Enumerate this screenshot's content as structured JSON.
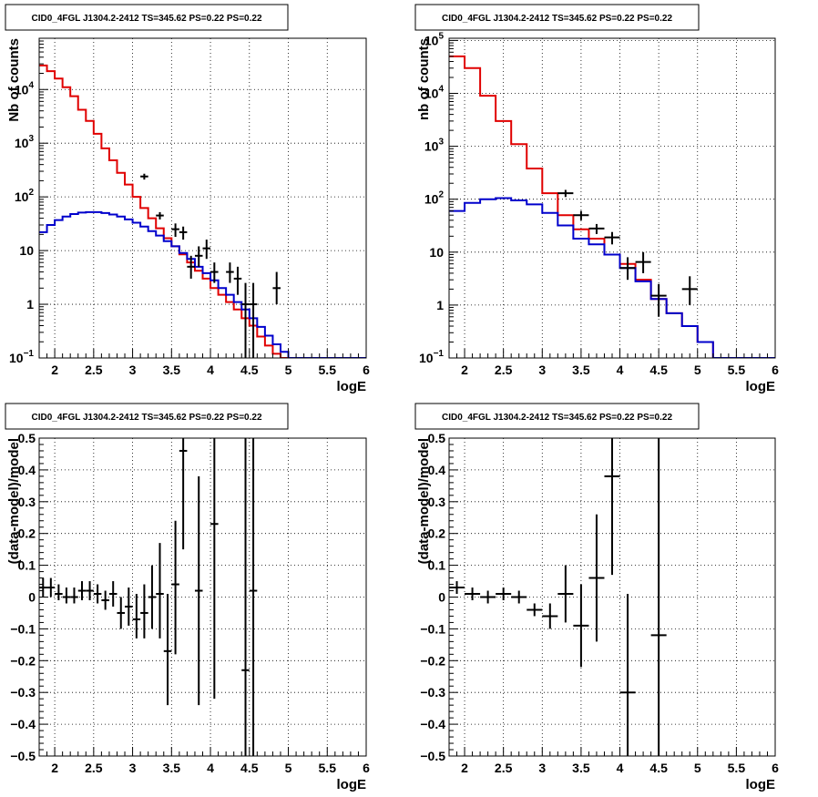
{
  "chart_data": [
    {
      "type": "histogram",
      "title": "CID0_4FGL J1304.2-2412 TS=345.62 PS=0.22 PS=0.22",
      "xlabel": "logE",
      "ylabel": "Nb of counts",
      "xlim": [
        1.8,
        6.0
      ],
      "ylim": [
        0.1,
        90000
      ],
      "y_scale": "log",
      "grid": true,
      "x_ticks": [
        2,
        2.5,
        3,
        3.5,
        4,
        4.5,
        5,
        5.5,
        6
      ],
      "x_tick_labels": [
        "2",
        "2.5",
        "3",
        "3.5",
        "4",
        "4.5",
        "5",
        "5.5",
        "6"
      ],
      "y_ticks": [
        0.1,
        1,
        10,
        100,
        1000,
        10000
      ],
      "y_tick_labels": [
        {
          "base": "10",
          "exp": "−1"
        },
        {
          "base": "1",
          "exp": ""
        },
        {
          "base": "10",
          "exp": ""
        },
        {
          "base": "10",
          "exp": "2"
        },
        {
          "base": "10",
          "exp": "3"
        },
        {
          "base": "10",
          "exp": "4"
        }
      ],
      "bin_edges": [
        1.8,
        1.9,
        2.0,
        2.1,
        2.2,
        2.3,
        2.4,
        2.5,
        2.6,
        2.7,
        2.8,
        2.9,
        3.0,
        3.1,
        3.2,
        3.3,
        3.4,
        3.5,
        3.6,
        3.7,
        3.8,
        3.9,
        4.0,
        4.1,
        4.2,
        4.3,
        4.4,
        4.5,
        4.6,
        4.7,
        4.8,
        4.9,
        5.0,
        5.1,
        5.2,
        5.3,
        5.4,
        5.5,
        5.6,
        5.7,
        5.8,
        5.9,
        6.0
      ],
      "series": [
        {
          "role": "total-model",
          "color": "#e00000",
          "values": [
            28000,
            22000,
            16000,
            11000,
            7500,
            4200,
            2600,
            1500,
            800,
            480,
            280,
            170,
            100,
            62,
            40,
            26,
            17,
            12,
            8.5,
            6,
            4.2,
            3,
            2,
            1.5,
            1.1,
            0.8,
            0.55,
            0.4,
            0.25,
            0.17,
            0.12,
            0.1,
            0.1,
            0.1,
            0.1,
            0.1,
            0.1,
            0.1,
            0.1,
            0.1,
            0.1,
            0.1
          ]
        },
        {
          "role": "background-model",
          "color": "#0000cc",
          "values": [
            22,
            30,
            37,
            43,
            48,
            51,
            52,
            52,
            50,
            47,
            43,
            38,
            33,
            28,
            23,
            19,
            15,
            12,
            9,
            7,
            5,
            3.8,
            2.8,
            2,
            1.5,
            1.1,
            0.8,
            0.55,
            0.38,
            0.26,
            0.18,
            0.13,
            0.1,
            0.1,
            0.1,
            0.1,
            0.1,
            0.1,
            0.1,
            0.1,
            0.1,
            0.1
          ]
        },
        {
          "role": "data",
          "color": "#000000",
          "x": [
            3.15,
            3.35,
            3.55,
            3.65,
            3.75,
            3.85,
            3.95,
            4.05,
            4.25,
            4.35,
            4.45,
            4.55,
            4.85
          ],
          "xerr": [
            0.05,
            0.05,
            0.05,
            0.05,
            0.05,
            0.05,
            0.05,
            0.05,
            0.05,
            0.05,
            0.05,
            0.05,
            0.05
          ],
          "y": [
            240,
            45,
            25,
            22,
            5,
            8,
            11,
            4,
            4,
            3,
            1,
            1,
            2
          ],
          "ylo": [
            210,
            38,
            18,
            16,
            3,
            5,
            7,
            2.5,
            2.5,
            1.5,
            0.1,
            0.1,
            1
          ],
          "yhi": [
            270,
            52,
            32,
            28,
            8,
            12,
            16,
            6,
            6,
            5,
            2.5,
            2.5,
            4
          ]
        }
      ]
    },
    {
      "type": "histogram",
      "title": "CID0_4FGL J1304.2-2412 TS=345.62 PS=0.22 PS=0.22",
      "xlabel": "logE",
      "ylabel": "nb of counts",
      "xlim": [
        1.8,
        6.0
      ],
      "ylim": [
        0.1,
        110000
      ],
      "y_scale": "log",
      "grid": true,
      "x_ticks": [
        2,
        2.5,
        3,
        3.5,
        4,
        4.5,
        5,
        5.5,
        6
      ],
      "x_tick_labels": [
        "2",
        "2.5",
        "3",
        "3.5",
        "4",
        "4.5",
        "5",
        "5.5",
        "6"
      ],
      "y_ticks": [
        0.1,
        1,
        10,
        100,
        1000,
        10000,
        100000
      ],
      "y_tick_labels": [
        {
          "base": "10",
          "exp": "−1"
        },
        {
          "base": "1",
          "exp": ""
        },
        {
          "base": "10",
          "exp": ""
        },
        {
          "base": "10",
          "exp": "2"
        },
        {
          "base": "10",
          "exp": "3"
        },
        {
          "base": "10",
          "exp": "4"
        },
        {
          "base": "10",
          "exp": "5"
        }
      ],
      "bin_edges": [
        1.8,
        2.0,
        2.2,
        2.4,
        2.6,
        2.8,
        3.0,
        3.2,
        3.4,
        3.6,
        3.8,
        4.0,
        4.2,
        4.4,
        4.6,
        4.8,
        5.0,
        5.2,
        5.4,
        5.6,
        5.8,
        6.0
      ],
      "series": [
        {
          "role": "total-model",
          "color": "#e00000",
          "values": [
            50000,
            30000,
            9000,
            3000,
            1100,
            380,
            130,
            50,
            27,
            18,
            9,
            6,
            3,
            1.3,
            0.7,
            0.4,
            0.2,
            0.1,
            0.1,
            0.1,
            0.1
          ]
        },
        {
          "role": "background-model",
          "color": "#0000cc",
          "values": [
            60,
            85,
            100,
            105,
            95,
            80,
            55,
            32,
            18,
            14,
            9,
            5,
            2.8,
            1.3,
            0.7,
            0.4,
            0.2,
            0.1,
            0.1,
            0.1,
            0.1
          ]
        },
        {
          "role": "data",
          "color": "#000000",
          "x": [
            3.3,
            3.5,
            3.7,
            3.9,
            4.1,
            4.3,
            4.5,
            4.9
          ],
          "xerr": [
            0.1,
            0.1,
            0.1,
            0.1,
            0.1,
            0.1,
            0.1,
            0.1
          ],
          "y": [
            130,
            50,
            28,
            19,
            5,
            6.5,
            1.5,
            2
          ],
          "ylo": [
            110,
            40,
            22,
            14,
            3,
            4,
            0.6,
            1
          ],
          "yhi": [
            150,
            60,
            34,
            24,
            8,
            10,
            2.5,
            3.5
          ]
        }
      ]
    },
    {
      "type": "scatter",
      "title": "CID0_4FGL J1304.2-2412 TS=345.62 PS=0.22 PS=0.22",
      "xlabel": "logE",
      "ylabel": "(data-model)/model",
      "xlim": [
        1.8,
        6.0
      ],
      "ylim": [
        -0.5,
        0.5
      ],
      "grid": true,
      "x_ticks": [
        2,
        2.5,
        3,
        3.5,
        4,
        4.5,
        5,
        5.5,
        6
      ],
      "x_tick_labels": [
        "2",
        "2.5",
        "3",
        "3.5",
        "4",
        "4.5",
        "5",
        "5.5",
        "6"
      ],
      "y_ticks": [
        -0.5,
        -0.4,
        -0.3,
        -0.2,
        -0.1,
        0,
        0.1,
        0.2,
        0.3,
        0.4,
        0.5
      ],
      "y_tick_labels": [
        "−0.5",
        "−0.4",
        "−0.3",
        "−0.2",
        "−0.1",
        "0",
        "0.1",
        "0.2",
        "0.3",
        "0.4",
        "0.5"
      ],
      "series": [
        {
          "role": "residuals",
          "color": "#000000",
          "x": [
            1.85,
            1.95,
            2.05,
            2.15,
            2.25,
            2.35,
            2.45,
            2.55,
            2.65,
            2.75,
            2.85,
            2.95,
            3.05,
            3.15,
            3.25,
            3.35,
            3.45,
            3.55,
            3.65,
            3.85,
            4.05,
            4.45,
            4.55
          ],
          "xerr": [
            0.05,
            0.05,
            0.05,
            0.05,
            0.05,
            0.05,
            0.05,
            0.05,
            0.05,
            0.05,
            0.05,
            0.05,
            0.05,
            0.05,
            0.05,
            0.05,
            0.05,
            0.05,
            0.05,
            0.05,
            0.05,
            0.05,
            0.05
          ],
          "y": [
            0.03,
            0.03,
            0.01,
            0.0,
            0.0,
            0.02,
            0.02,
            0.01,
            -0.01,
            0.01,
            -0.05,
            -0.03,
            -0.07,
            -0.05,
            0.0,
            0.01,
            -0.17,
            0.04,
            0.46,
            0.02,
            0.23,
            -0.23,
            0.02
          ],
          "ylo": [
            0.0,
            0.0,
            -0.01,
            -0.02,
            -0.02,
            -0.01,
            -0.01,
            -0.02,
            -0.04,
            -0.03,
            -0.1,
            -0.09,
            -0.13,
            -0.13,
            -0.1,
            -0.13,
            -0.34,
            -0.18,
            0.15,
            -0.34,
            -0.32,
            -0.5,
            -0.5
          ],
          "yhi": [
            0.06,
            0.06,
            0.04,
            0.03,
            0.03,
            0.05,
            0.05,
            0.04,
            0.02,
            0.05,
            0.0,
            0.03,
            0.01,
            0.04,
            0.1,
            0.17,
            0.01,
            0.24,
            0.5,
            0.38,
            0.5,
            0.5,
            0.5
          ]
        }
      ]
    },
    {
      "type": "scatter",
      "title": "CID0_4FGL J1304.2-2412 TS=345.62 PS=0.22 PS=0.22",
      "xlabel": "logE",
      "ylabel": "(data-model)/model",
      "xlim": [
        1.8,
        6.0
      ],
      "ylim": [
        -0.5,
        0.5
      ],
      "grid": true,
      "x_ticks": [
        2,
        2.5,
        3,
        3.5,
        4,
        4.5,
        5,
        5.5,
        6
      ],
      "x_tick_labels": [
        "2",
        "2.5",
        "3",
        "3.5",
        "4",
        "4.5",
        "5",
        "5.5",
        "6"
      ],
      "y_ticks": [
        -0.5,
        -0.4,
        -0.3,
        -0.2,
        -0.1,
        0,
        0.1,
        0.2,
        0.3,
        0.4,
        0.5
      ],
      "y_tick_labels": [
        "−0.5",
        "−0.4",
        "−0.3",
        "−0.2",
        "−0.1",
        "0",
        "0.1",
        "0.2",
        "0.3",
        "0.4",
        "0.5"
      ],
      "series": [
        {
          "role": "residuals",
          "color": "#000000",
          "x": [
            1.9,
            2.1,
            2.3,
            2.5,
            2.7,
            2.9,
            3.1,
            3.3,
            3.5,
            3.7,
            3.9,
            4.1,
            4.5
          ],
          "xerr": [
            0.1,
            0.1,
            0.1,
            0.1,
            0.1,
            0.1,
            0.1,
            0.1,
            0.1,
            0.1,
            0.1,
            0.1,
            0.1
          ],
          "y": [
            0.03,
            0.01,
            0.0,
            0.01,
            0.0,
            -0.04,
            -0.06,
            0.01,
            -0.09,
            0.06,
            0.38,
            -0.3,
            -0.12
          ],
          "ylo": [
            0.01,
            -0.01,
            -0.02,
            -0.01,
            -0.02,
            -0.06,
            -0.1,
            -0.08,
            -0.22,
            -0.14,
            0.07,
            -0.5,
            -0.5
          ],
          "yhi": [
            0.05,
            0.03,
            0.02,
            0.03,
            0.02,
            -0.02,
            -0.02,
            0.1,
            0.04,
            0.26,
            0.5,
            0.01,
            0.5
          ]
        }
      ]
    }
  ]
}
